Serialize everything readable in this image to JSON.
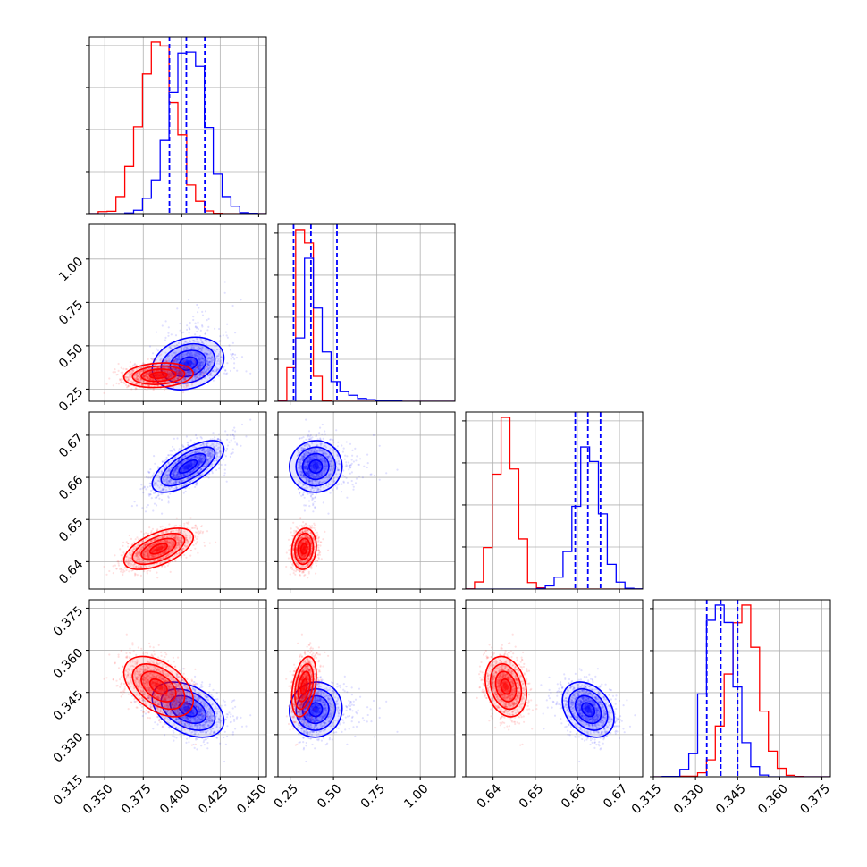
{
  "chart_data": {
    "type": "corner",
    "colors": {
      "series_a": "#0000ff",
      "series_b": "#ff0000"
    },
    "grid": true,
    "parameters": [
      {
        "range": [
          0.34,
          0.455
        ],
        "ticks": [
          0.35,
          0.375,
          0.4,
          0.425,
          0.45
        ],
        "tick_labels": [
          "0.350",
          "0.375",
          "0.400",
          "0.425",
          "0.450"
        ]
      },
      {
        "range": [
          0.18,
          1.2
        ],
        "ticks": [
          0.25,
          0.5,
          0.75,
          1.0
        ],
        "tick_labels": [
          "0.25",
          "0.50",
          "0.75",
          "1.00"
        ]
      },
      {
        "range": [
          0.6335,
          0.6755
        ],
        "ticks": [
          0.64,
          0.65,
          0.66,
          0.67
        ],
        "tick_labels": [
          "0.64",
          "0.65",
          "0.66",
          "0.67"
        ]
      },
      {
        "range": [
          0.315,
          0.378
        ],
        "ticks": [
          0.315,
          0.33,
          0.345,
          0.36,
          0.375
        ],
        "tick_labels": [
          "0.315",
          "0.330",
          "0.345",
          "0.360",
          "0.375"
        ]
      }
    ],
    "series": [
      {
        "color": "#0000ff",
        "mean": [
          0.404,
          0.38,
          0.6625,
          0.339
        ],
        "sd": [
          0.012,
          0.12,
          0.0032,
          0.005
        ],
        "skew_right": [
          false,
          true,
          false,
          false
        ],
        "corr": {
          "1-0": 0.25,
          "2-0": 0.72,
          "2-1": -0.12,
          "3-0": -0.45,
          "3-1": 0.15,
          "3-2": 0.0
        },
        "quantiles": [
          [
            0.392,
            0.403,
            0.415
          ],
          [
            0.27,
            0.37,
            0.52
          ],
          [
            0.6595,
            0.6625,
            0.6655
          ],
          [
            0.334,
            0.339,
            0.345
          ]
        ]
      },
      {
        "color": "#ff0000",
        "mean": [
          0.385,
          0.33,
          0.643,
          0.347
        ],
        "sd": [
          0.011,
          0.035,
          0.0025,
          0.0055
        ],
        "skew_right": [
          false,
          false,
          false,
          false
        ],
        "corr": {
          "1-0": 0.15,
          "2-0": 0.55,
          "2-1": 0.05,
          "3-0": -0.5,
          "3-1": 0.45,
          "3-2": 0.0
        },
        "quantiles": null
      }
    ]
  }
}
